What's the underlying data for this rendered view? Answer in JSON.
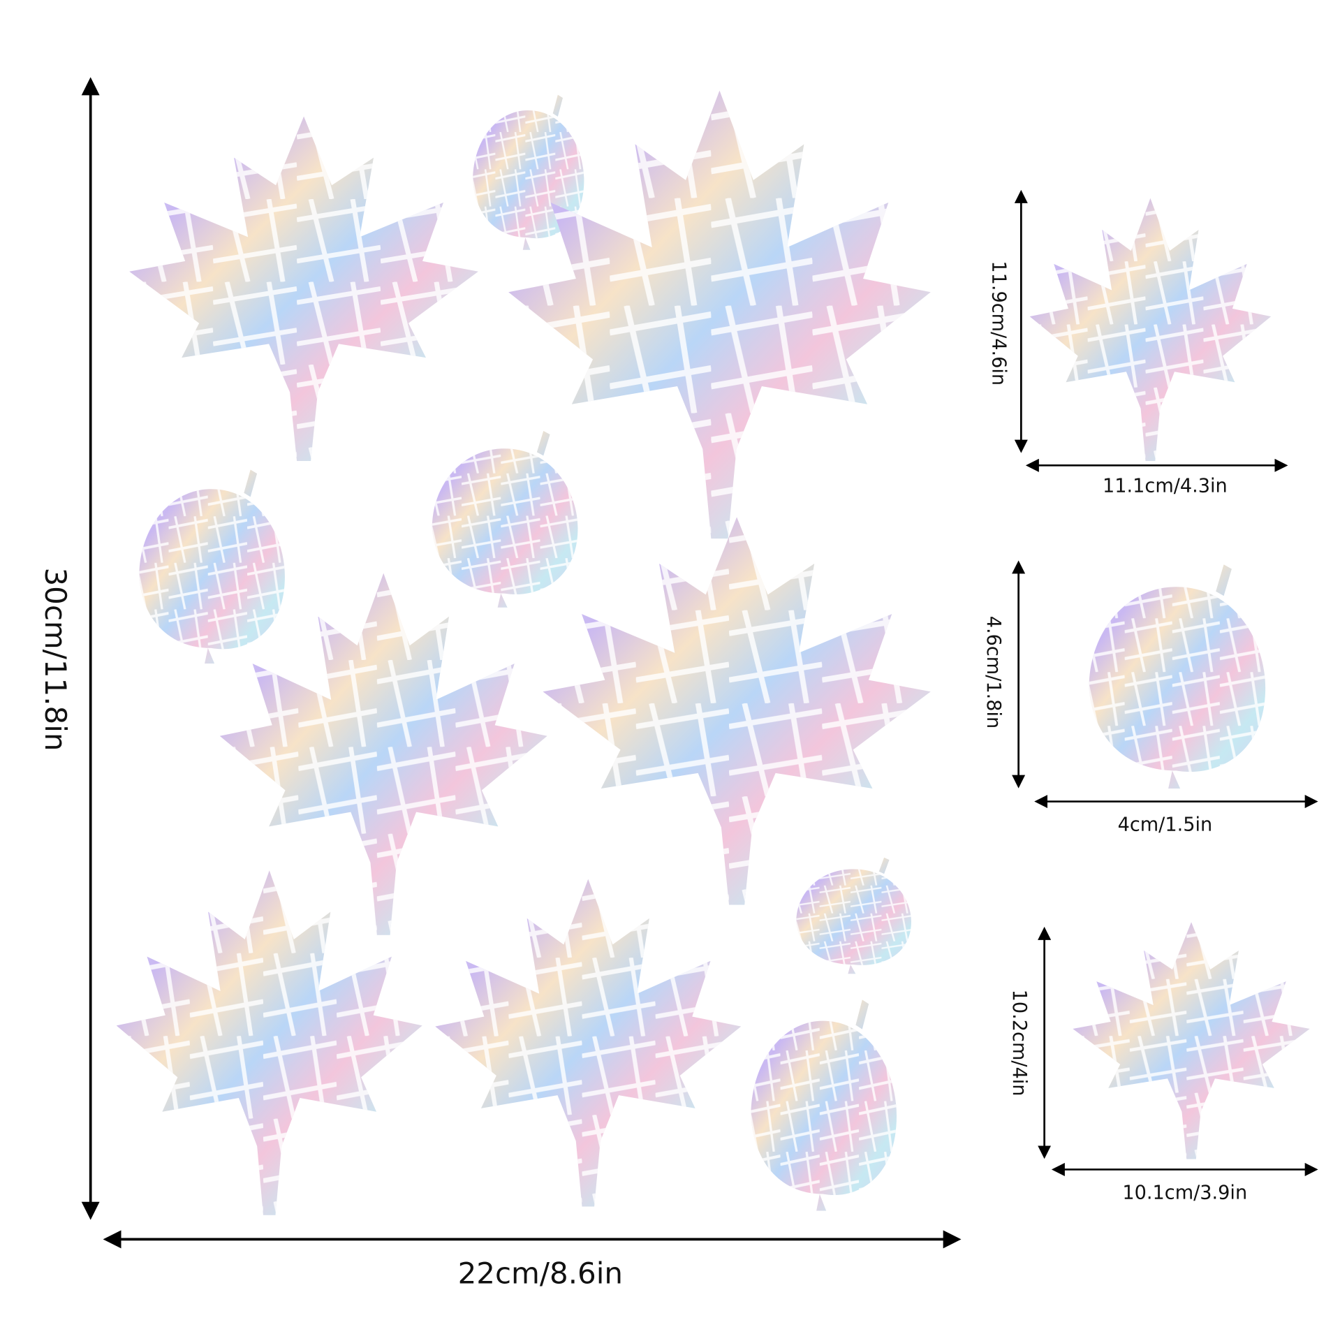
{
  "main": {
    "height": "30cm/11.8in",
    "width": "22cm/8.6in"
  },
  "samples": [
    {
      "height": "11.9cm/4.6in",
      "width": "11.1cm/4.3in"
    },
    {
      "height": "4.6cm/1.8in",
      "width": "4cm/1.5in"
    },
    {
      "height": "10.2cm/4in",
      "width": "10.1cm/3.9in"
    }
  ]
}
